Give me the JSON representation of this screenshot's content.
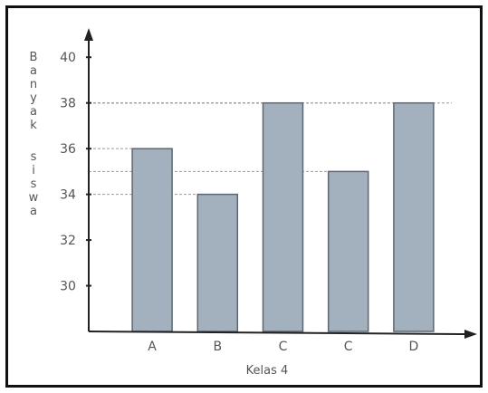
{
  "chart_data": {
    "type": "bar",
    "categories": [
      "A",
      "B",
      "C",
      "C",
      "D"
    ],
    "values": [
      36,
      34,
      38,
      35,
      38
    ],
    "xlabel": "Kelas 4",
    "ylabel": "Banyak siswa",
    "ylabel_letters": [
      "B",
      "a",
      "n",
      "y",
      "a",
      "k",
      "",
      "s",
      "i",
      "s",
      "w",
      "a"
    ],
    "yticks": [
      30,
      32,
      34,
      36,
      38,
      40
    ],
    "ylim": [
      28,
      41
    ],
    "grid": false,
    "colors": {
      "bar_fill": "#a3b1bf",
      "bar_stroke": "#5d6770",
      "axis": "#222222",
      "guide": "#9a9a9a"
    }
  }
}
